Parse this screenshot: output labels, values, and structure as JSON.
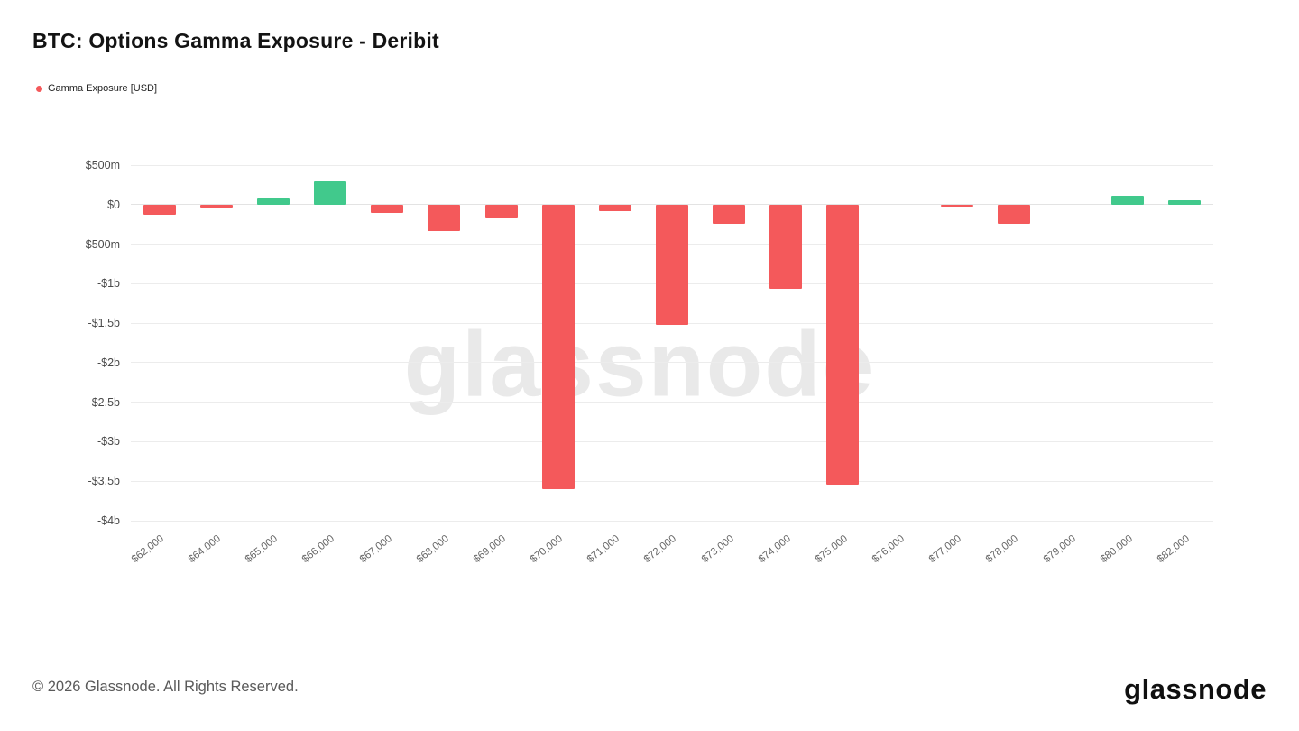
{
  "title": "BTC: Options Gamma Exposure - Deribit",
  "legend": {
    "label": "Gamma Exposure [USD]",
    "color": "#f4595b"
  },
  "watermark": "glassnode",
  "footer": {
    "copyright": "© 2026 Glassnode. All Rights Reserved.",
    "brand": "glassnode"
  },
  "chart_data": {
    "type": "bar",
    "title": "BTC: Options Gamma Exposure - Deribit",
    "unit": "USD millions",
    "categories": [
      "$62,000",
      "$64,000",
      "$65,000",
      "$66,000",
      "$67,000",
      "$68,000",
      "$69,000",
      "$70,000",
      "$71,000",
      "$72,000",
      "$73,000",
      "$74,000",
      "$75,000",
      "$76,000",
      "$77,000",
      "$78,000",
      "$79,000",
      "$80,000",
      "$82,000"
    ],
    "values": [
      -130,
      -40,
      90,
      290,
      -100,
      -330,
      -170,
      -3600,
      -80,
      -1520,
      -240,
      -1060,
      -3540,
      0,
      -30,
      -240,
      0,
      110,
      60
    ],
    "xlabel": "",
    "ylabel": "",
    "ylim": [
      -4000,
      500
    ],
    "yticks": [
      {
        "label": "$500m",
        "value": 500
      },
      {
        "label": "$0",
        "value": 0
      },
      {
        "label": "-$500m",
        "value": -500
      },
      {
        "label": "-$1b",
        "value": -1000
      },
      {
        "label": "-$1.5b",
        "value": -1500
      },
      {
        "label": "-$2b",
        "value": -2000
      },
      {
        "label": "-$2.5b",
        "value": -2500
      },
      {
        "label": "-$3b",
        "value": -3000
      },
      {
        "label": "-$3.5b",
        "value": -3500
      },
      {
        "label": "-$4b",
        "value": -4000
      }
    ],
    "grid": true,
    "legend_position": "top-left",
    "colors": {
      "positive": "#41c98c",
      "negative": "#f4595b"
    }
  }
}
